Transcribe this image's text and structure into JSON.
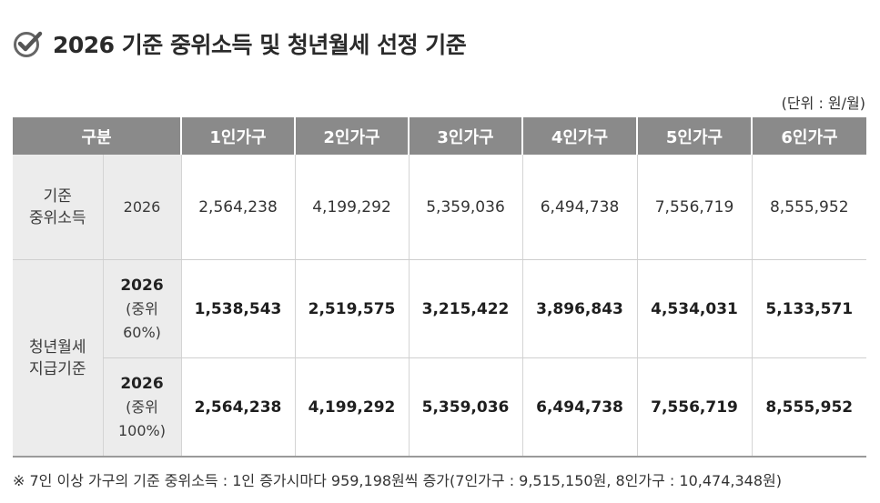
{
  "title": "2026 기준 중위소득 및 청년월세 선정 기준",
  "icon": "check-circle-icon",
  "unit": "(단위 : 원/월)",
  "table": {
    "headers": [
      "구분",
      "1인가구",
      "2인가구",
      "3인가구",
      "4인가구",
      "5인가구",
      "6인가구"
    ],
    "rows": [
      {
        "category": "기준\n중위소득",
        "sub": "2026",
        "values": [
          "2,564,238",
          "4,199,292",
          "5,359,036",
          "6,494,738",
          "7,556,719",
          "8,555,952"
        ]
      },
      {
        "category": "청년월세\n지급기준",
        "sub_year": "2026",
        "sub_note": "(중위\n60%)",
        "values": [
          "1,538,543",
          "2,519,575",
          "3,215,422",
          "3,896,843",
          "4,534,031",
          "5,133,571"
        ]
      },
      {
        "sub_year": "2026",
        "sub_note": "(중위\n100%)",
        "values": [
          "2,564,238",
          "4,199,292",
          "5,359,036",
          "6,494,738",
          "7,556,719",
          "8,555,952"
        ]
      }
    ]
  },
  "footnote": "※ 7인 이상 가구의 기준 중위소득 : 1인 증가시마다 959,198원씩 증가(7인가구 : 9,515,150원, 8인가구 : 10,474,348원)"
}
